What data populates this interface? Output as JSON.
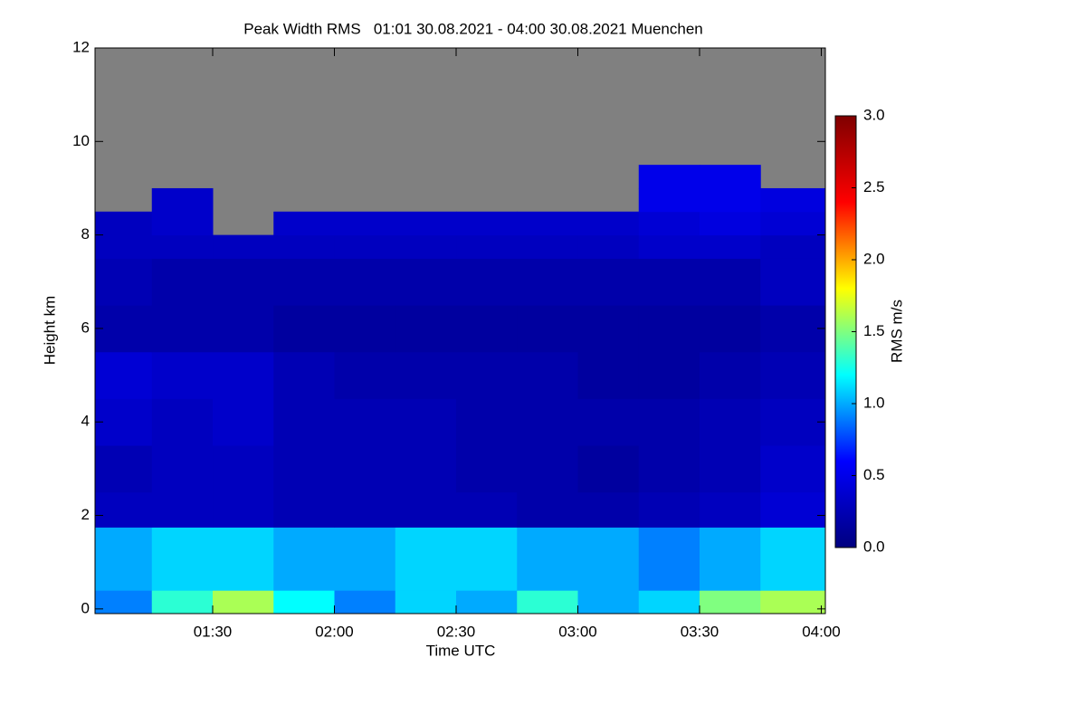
{
  "chart_data": {
    "type": "heatmap",
    "title": "Peak Width RMS   01:01 30.08.2021 - 04:00 30.08.2021 Muenchen",
    "xlabel": "Time UTC",
    "ylabel": "Height km",
    "colorbar_label": "RMS m/s",
    "xlim": [
      1.0167,
      4.0167
    ],
    "xticks": [
      {
        "value": 1.5,
        "label": "01:30"
      },
      {
        "value": 2.0,
        "label": "02:00"
      },
      {
        "value": 2.5,
        "label": "02:30"
      },
      {
        "value": 3.0,
        "label": "03:00"
      },
      {
        "value": 3.5,
        "label": "03:30"
      },
      {
        "value": 4.0,
        "label": "04:00"
      }
    ],
    "ylim": [
      -0.1,
      12
    ],
    "yticks": [
      0,
      2,
      4,
      6,
      8,
      10,
      12
    ],
    "zlim": [
      0,
      3
    ],
    "zticks": [
      {
        "value": 0,
        "label": "0.0"
      },
      {
        "value": 0.5,
        "label": "0.5"
      },
      {
        "value": 1,
        "label": "1.0"
      },
      {
        "value": 1.5,
        "label": "1.5"
      },
      {
        "value": 2,
        "label": "2.0"
      },
      {
        "value": 2.5,
        "label": "2.5"
      },
      {
        "value": 3,
        "label": "3.0"
      }
    ],
    "colorscale": [
      "#00007f",
      "#0000ff",
      "#00ffff",
      "#ffff00",
      "#ff0000",
      "#7f0000"
    ],
    "missing_color": "#808080",
    "x_edges": [
      1.0167,
      1.25,
      1.5,
      1.75,
      2.0,
      2.25,
      2.5,
      2.75,
      3.0,
      3.25,
      3.5,
      3.75,
      4.0167
    ],
    "y_edges": [
      -0.1,
      0.4,
      1.75,
      2.5,
      3.5,
      4.5,
      5.5,
      6.5,
      7.5,
      8.0,
      8.5,
      9.0,
      9.5
    ],
    "z": [
      [
        0.9,
        1.3,
        1.6,
        1.2,
        0.9,
        1.1,
        1.0,
        1.3,
        1.0,
        1.1,
        1.5,
        1.6
      ],
      [
        1.0,
        1.1,
        1.1,
        1.0,
        1.0,
        1.1,
        1.1,
        1.0,
        1.0,
        0.9,
        1.0,
        1.1
      ],
      [
        0.3,
        0.3,
        0.3,
        0.25,
        0.25,
        0.25,
        0.25,
        0.2,
        0.2,
        0.25,
        0.3,
        0.4
      ],
      [
        0.25,
        0.3,
        0.3,
        0.25,
        0.25,
        0.25,
        0.2,
        0.2,
        0.15,
        0.2,
        0.25,
        0.35
      ],
      [
        0.35,
        0.3,
        0.35,
        0.25,
        0.25,
        0.25,
        0.2,
        0.2,
        0.2,
        0.2,
        0.25,
        0.3
      ],
      [
        0.4,
        0.35,
        0.35,
        0.25,
        0.2,
        0.2,
        0.2,
        0.2,
        0.15,
        0.15,
        0.2,
        0.25
      ],
      [
        0.2,
        0.2,
        0.2,
        0.15,
        0.15,
        0.15,
        0.15,
        0.15,
        0.15,
        0.15,
        0.15,
        0.2
      ],
      [
        0.25,
        0.2,
        0.2,
        0.2,
        0.2,
        0.2,
        0.2,
        0.2,
        0.2,
        0.2,
        0.2,
        0.3
      ],
      [
        0.3,
        0.3,
        0.3,
        0.3,
        0.3,
        0.3,
        0.3,
        0.3,
        0.3,
        0.35,
        0.35,
        0.3
      ],
      [
        0.3,
        0.35,
        null,
        0.35,
        0.35,
        0.35,
        0.35,
        0.35,
        0.35,
        0.4,
        0.45,
        0.4
      ],
      [
        null,
        0.35,
        null,
        null,
        null,
        null,
        null,
        null,
        null,
        0.5,
        0.5,
        0.45
      ],
      [
        null,
        null,
        null,
        null,
        null,
        null,
        null,
        null,
        null,
        0.5,
        0.5,
        null
      ]
    ]
  }
}
